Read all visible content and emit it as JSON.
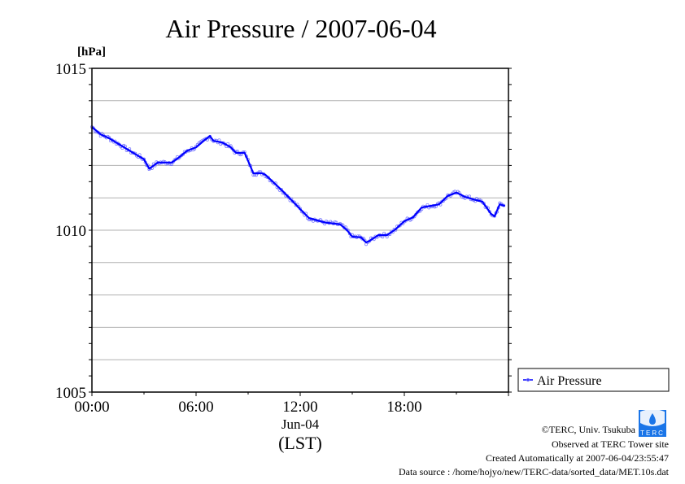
{
  "chart_data": {
    "type": "line",
    "title": "Air Pressure / 2007-06-04",
    "ylabel": "[hPa]",
    "xlabel": "Jun-04",
    "xlabel2": "(LST)",
    "ylim": [
      1005,
      1015
    ],
    "xlim_hours": [
      0,
      24
    ],
    "y_ticks": [
      "1005",
      "1010",
      "1015"
    ],
    "y_grid_step": 1,
    "x_ticks": [
      {
        "hour": 0,
        "label": "00:00"
      },
      {
        "hour": 6,
        "label": "06:00"
      },
      {
        "hour": 12,
        "label": "12:00"
      },
      {
        "hour": 18,
        "label": "18:00"
      }
    ],
    "grid": true,
    "legend": {
      "position": "right",
      "entries": [
        "Air Pressure"
      ]
    },
    "series": [
      {
        "name": "Air Pressure",
        "color": "#0000ff",
        "marker_color": "#7070ff",
        "x": [
          0,
          0.5,
          1,
          2,
          3,
          3.3,
          3.8,
          4.6,
          5,
          5.5,
          6,
          6.5,
          6.8,
          7,
          7.5,
          8,
          8.3,
          8.8,
          9,
          9.3,
          9.8,
          10,
          10.5,
          11,
          11.5,
          12,
          12.5,
          13,
          13.5,
          14,
          14.3,
          14.7,
          15,
          15.5,
          15.8,
          16,
          16.5,
          17,
          17.5,
          18,
          18.5,
          19,
          19.5,
          20,
          20.5,
          21,
          21.5,
          22,
          22.5,
          23,
          23.2,
          23.5,
          23.8
        ],
        "values": [
          1013.19,
          1012.96,
          1012.84,
          1012.51,
          1012.19,
          1011.9,
          1012.09,
          1012.09,
          1012.24,
          1012.46,
          1012.56,
          1012.79,
          1012.91,
          1012.76,
          1012.71,
          1012.56,
          1012.39,
          1012.39,
          1012.14,
          1011.76,
          1011.76,
          1011.71,
          1011.46,
          1011.2,
          1010.93,
          1010.65,
          1010.38,
          1010.3,
          1010.23,
          1010.2,
          1010.18,
          1010.0,
          1009.8,
          1009.78,
          1009.62,
          1009.67,
          1009.85,
          1009.85,
          1010.03,
          1010.28,
          1010.4,
          1010.7,
          1010.75,
          1010.8,
          1011.06,
          1011.16,
          1011.03,
          1010.95,
          1010.88,
          1010.5,
          1010.43,
          1010.8,
          1010.75
        ]
      }
    ]
  },
  "footer": {
    "copyright": "©TERC, Univ. Tsukuba",
    "observed": "Observed at TERC Tower site",
    "created": "Created Automatically at 2007-06-04/23:55:47",
    "source": "Data source : /home/hojyo/new/TERC-data/sorted_data/MET.10s.dat",
    "logo_text": "TERC"
  }
}
